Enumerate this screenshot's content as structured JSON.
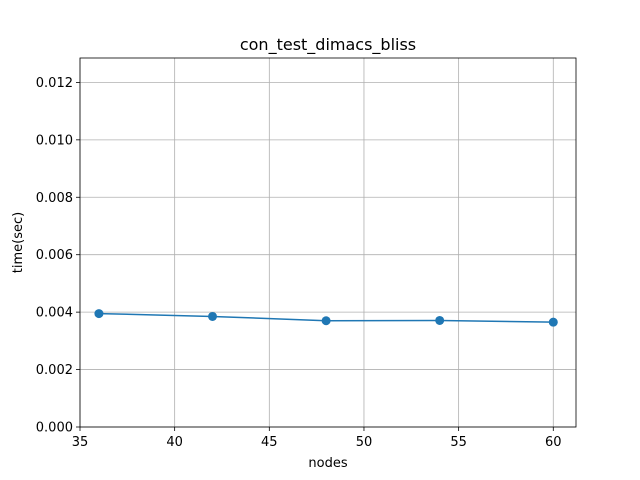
{
  "chart_data": {
    "type": "line",
    "title": "con_test_dimacs_bliss",
    "xlabel": "nodes",
    "ylabel": "time(sec)",
    "xlim": [
      35,
      61.2
    ],
    "ylim": [
      0,
      0.01285
    ],
    "xticks": [
      35,
      40,
      45,
      50,
      55,
      60
    ],
    "xtick_labels": [
      "35",
      "40",
      "45",
      "50",
      "55",
      "60"
    ],
    "yticks": [
      0,
      0.002,
      0.004,
      0.006,
      0.008,
      0.01,
      0.012
    ],
    "ytick_labels": [
      "0.000",
      "0.002",
      "0.004",
      "0.006",
      "0.008",
      "0.010",
      "0.012"
    ],
    "grid": true,
    "series": [
      {
        "name": "con_test_dimacs_bliss",
        "color": "#1f77b4",
        "marker": "circle",
        "x": [
          36,
          42,
          48,
          54,
          60
        ],
        "y": [
          0.00395,
          0.00385,
          0.0037,
          0.00371,
          0.00365
        ]
      }
    ]
  }
}
